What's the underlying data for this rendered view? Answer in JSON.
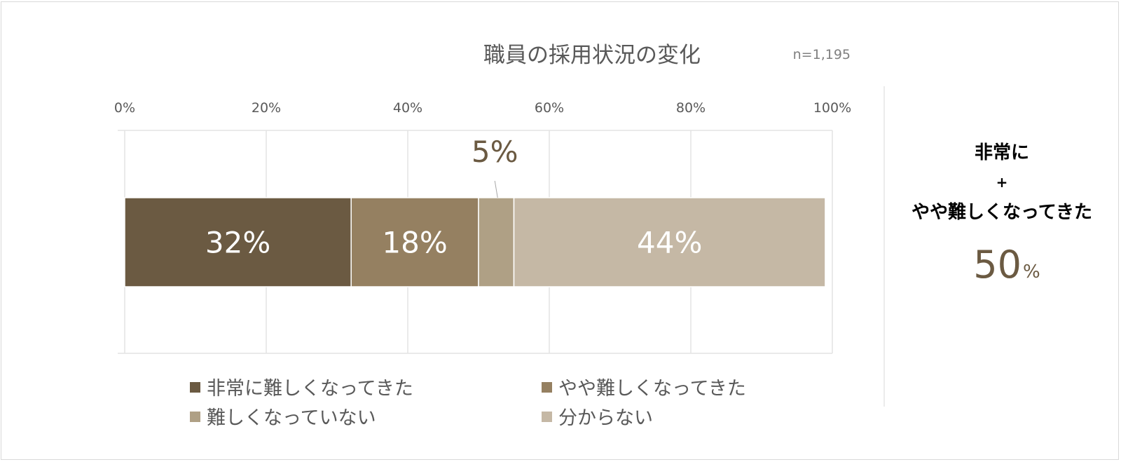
{
  "chart_data": {
    "type": "bar",
    "orientation": "horizontal",
    "stacked": true,
    "normalized": true,
    "title": "職員の採用状況の変化",
    "sample_size": "n=1,195",
    "xlim": [
      0,
      100
    ],
    "x_ticks": [
      "0%",
      "20%",
      "40%",
      "60%",
      "80%",
      "100%"
    ],
    "grid": true,
    "legend_position": "bottom",
    "series": [
      {
        "name": "非常に難しくなってきた",
        "value": 32,
        "label": "32%",
        "color": "#6b5a42",
        "label_outside": false
      },
      {
        "name": "やや難しくなってきた",
        "value": 18,
        "label": "18%",
        "color": "#958061",
        "label_outside": false
      },
      {
        "name": "難しくなっていない",
        "value": 5,
        "label": "5%",
        "color": "#afa085",
        "label_outside": true
      },
      {
        "name": "分からない",
        "value": 44,
        "label": "44%",
        "color": "#c5b8a5",
        "label_outside": false
      }
    ]
  },
  "summary": {
    "line1": "非常に",
    "line2": "+",
    "line3": "やや難しくなってきた",
    "value": "50",
    "unit": "%"
  }
}
